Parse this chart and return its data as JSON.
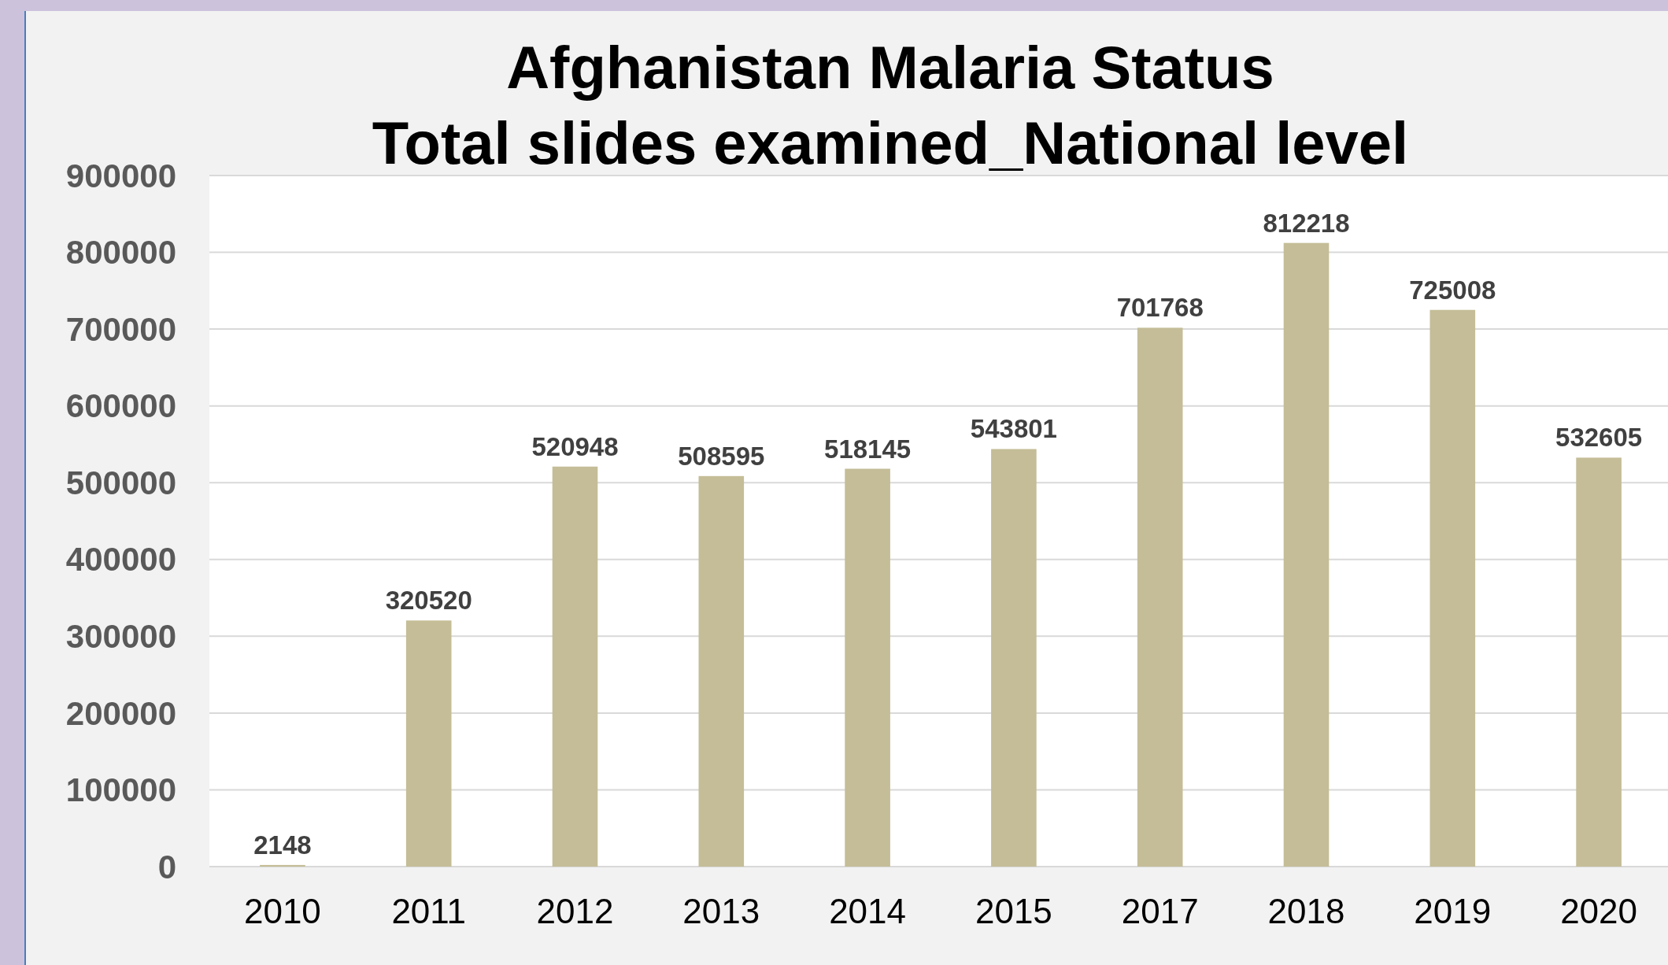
{
  "chart_data": {
    "type": "bar",
    "title": "Afghanistan Malaria Status\nTotal slides examined_National level",
    "categories": [
      "2010",
      "2011",
      "2012",
      "2013",
      "2014",
      "2015",
      "2017",
      "2018",
      "2019",
      "2020"
    ],
    "values": [
      2148,
      320520,
      520948,
      508595,
      518145,
      543801,
      701768,
      812218,
      725008,
      532605
    ],
    "color": "#c4bd97",
    "ylim": [
      0,
      900000
    ],
    "yticks": [
      0,
      100000,
      200000,
      300000,
      400000,
      500000,
      600000,
      700000,
      800000,
      900000
    ],
    "grid": "y",
    "data_labels": true
  }
}
